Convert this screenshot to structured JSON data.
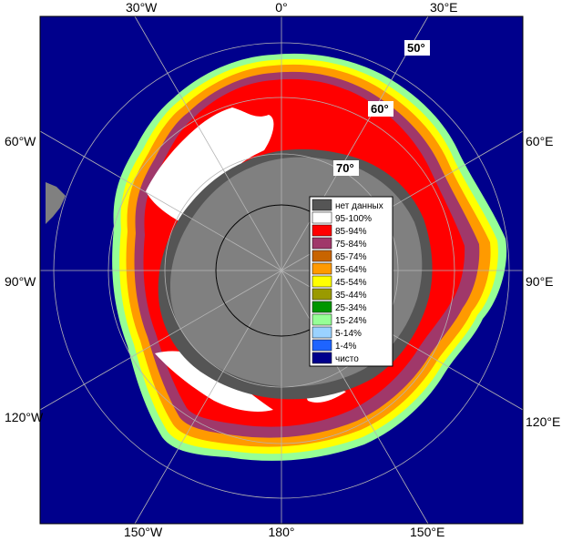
{
  "map": {
    "longitude_labels": {
      "top_30w": "30°W",
      "top_0": "0°",
      "top_30e": "30°E",
      "left_60w": "60°W",
      "left_90w": "90°W",
      "left_120w": "120°W",
      "right_60e": "60°E",
      "right_90e": "90°E",
      "right_120e": "120°E",
      "bottom_150w": "150°W",
      "bottom_180": "180°",
      "bottom_150e": "150°E"
    },
    "latitude_labels": {
      "lat50": "50°",
      "lat60": "60°",
      "lat70": "70°"
    }
  },
  "legend": {
    "items": [
      {
        "label": "нет данных",
        "color": "#555555"
      },
      {
        "label": "95-100%",
        "color": "#ffffff"
      },
      {
        "label": "85-94%",
        "color": "#ff0000"
      },
      {
        "label": "75-84%",
        "color": "#a0386a"
      },
      {
        "label": "65-74%",
        "color": "#c86400"
      },
      {
        "label": "55-64%",
        "color": "#ff9a00"
      },
      {
        "label": "45-54%",
        "color": "#ffff00"
      },
      {
        "label": "35-44%",
        "color": "#9a9a00"
      },
      {
        "label": "25-34%",
        "color": "#009600"
      },
      {
        "label": "15-24%",
        "color": "#96ff96"
      },
      {
        "label": "5-14%",
        "color": "#9ad2ff"
      },
      {
        "label": "1-4%",
        "color": "#1e64ff"
      },
      {
        "label": "чисто",
        "color": "#00008c"
      }
    ]
  },
  "colors": {
    "ocean": "#00008c",
    "land": "#808080",
    "no_data": "#555555",
    "grid": "#b4b4b4"
  }
}
